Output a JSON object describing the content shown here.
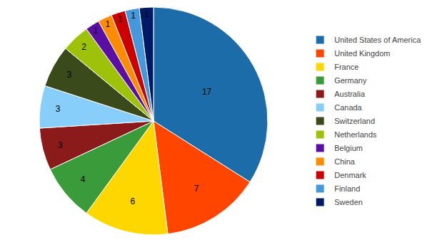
{
  "chart_data": {
    "type": "pie",
    "categories": [
      "United States of America",
      "United Kingdom",
      "France",
      "Germany",
      "Australia",
      "Canada",
      "Switzerland",
      "Netherlands",
      "Belgium",
      "China",
      "Denmark",
      "Finland",
      "Sweden"
    ],
    "values": [
      17,
      7,
      6,
      4,
      3,
      3,
      3,
      2,
      1,
      1,
      1,
      1,
      1
    ],
    "colors": [
      "#1B6CA8",
      "#FF4500",
      "#FFD700",
      "#3A9B3A",
      "#8B1A1A",
      "#87CEFA",
      "#3B4A1A",
      "#9DC209",
      "#5B0EA6",
      "#FF8C00",
      "#CC0000",
      "#4499DD",
      "#001A66"
    ],
    "data_labels": true,
    "legend": "right"
  }
}
